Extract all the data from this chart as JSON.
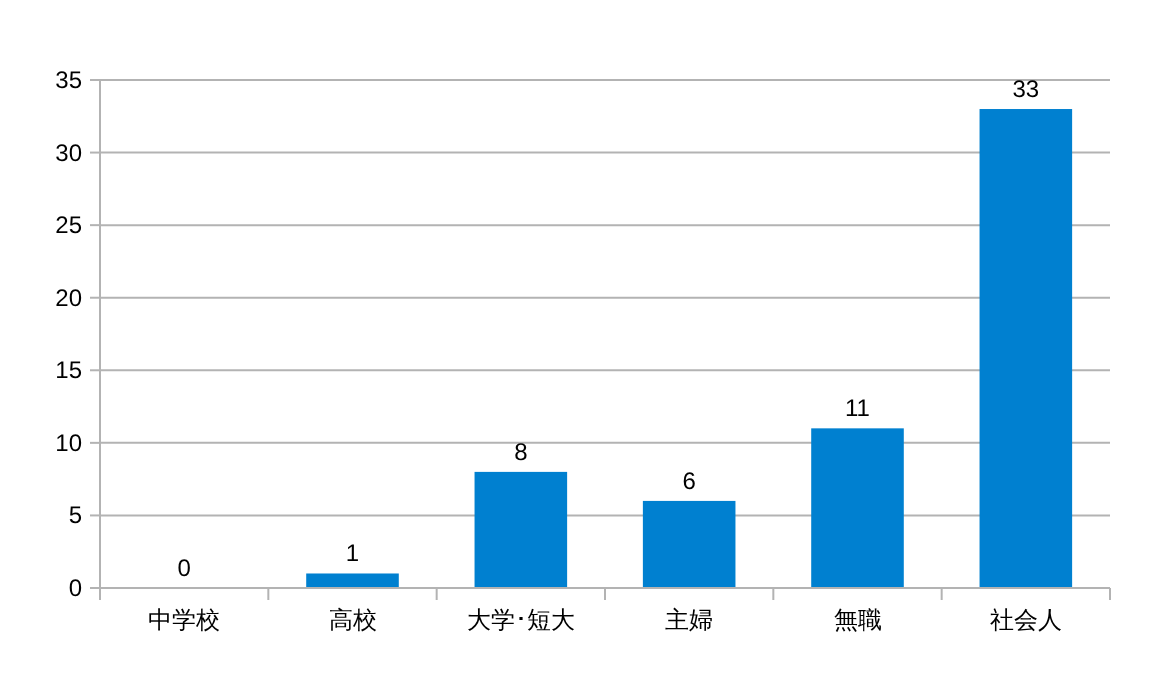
{
  "chart_data": {
    "type": "bar",
    "categories": [
      "中学校",
      "高校",
      "大学･短大",
      "主婦",
      "無職",
      "社会人"
    ],
    "values": [
      0,
      1,
      8,
      6,
      11,
      33
    ],
    "color": "#0080d0",
    "ylim": [
      0,
      35
    ],
    "yticks": [
      0,
      5,
      10,
      15,
      20,
      25,
      30,
      35
    ],
    "grid": "y",
    "data_labels": true
  }
}
